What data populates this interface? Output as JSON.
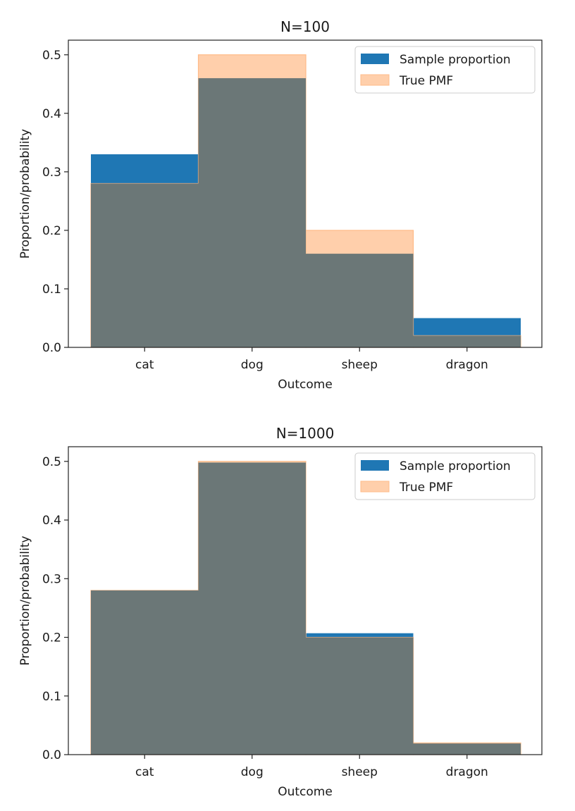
{
  "colors": {
    "sample": "#1f77b4",
    "true_pmf": "#ffbb88",
    "overlap": "#6b7777",
    "frame": "#222222"
  },
  "chart_data": [
    {
      "type": "bar",
      "title": "N=100",
      "xlabel": "Outcome",
      "ylabel": "Proportion/probability",
      "categories": [
        "cat",
        "dog",
        "sheep",
        "dragon"
      ],
      "series": [
        {
          "name": "Sample proportion",
          "values": [
            0.33,
            0.46,
            0.16,
            0.05
          ]
        },
        {
          "name": "True PMF",
          "values": [
            0.28,
            0.5,
            0.2,
            0.02
          ]
        }
      ],
      "ylim": [
        0,
        0.525
      ],
      "yticks": [
        "0.0",
        "0.1",
        "0.2",
        "0.3",
        "0.4",
        "0.5"
      ],
      "legend": "top-right",
      "grid": false
    },
    {
      "type": "bar",
      "title": "N=1000",
      "xlabel": "Outcome",
      "ylabel": "Proportion/probability",
      "categories": [
        "cat",
        "dog",
        "sheep",
        "dragon"
      ],
      "series": [
        {
          "name": "Sample proportion",
          "values": [
            0.28,
            0.498,
            0.207,
            0.019
          ]
        },
        {
          "name": "True PMF",
          "values": [
            0.28,
            0.5,
            0.2,
            0.02
          ]
        }
      ],
      "ylim": [
        0,
        0.525
      ],
      "yticks": [
        "0.0",
        "0.1",
        "0.2",
        "0.3",
        "0.4",
        "0.5"
      ],
      "legend": "top-right",
      "grid": false
    }
  ]
}
